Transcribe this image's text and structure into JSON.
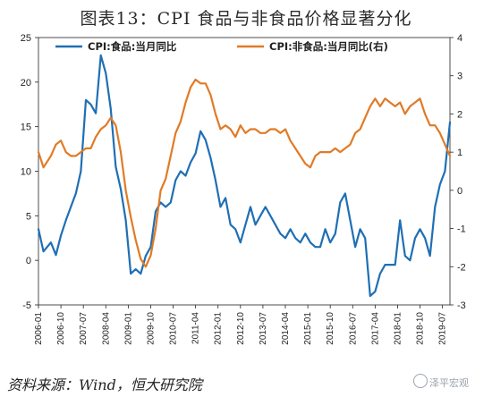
{
  "title": "图表13：CPI 食品与非食品价格显著分化",
  "source": "资料来源：Wind，恒大研究院",
  "watermark": "泽平宏观",
  "watermark_icon": "wechat-icon",
  "chart_data": {
    "type": "line",
    "grid": false,
    "legend_position": "top",
    "x_tick_labels": [
      "2006-01",
      "2006-10",
      "2007-07",
      "2008-04",
      "2009-01",
      "2009-10",
      "2010-07",
      "2011-04",
      "2012-01",
      "2012-10",
      "2013-07",
      "2014-04",
      "2015-01",
      "2015-10",
      "2016-07",
      "2017-04",
      "2018-01",
      "2018-10",
      "2019-07"
    ],
    "x_range": [
      "2006-01",
      "2019-10"
    ],
    "y_left": {
      "range": [
        -5,
        25
      ],
      "ticks": [
        -5,
        0,
        5,
        10,
        15,
        20,
        25
      ]
    },
    "y_right": {
      "range": [
        -3,
        4
      ],
      "ticks": [
        -3,
        -2,
        -1,
        0,
        1,
        2,
        3,
        4
      ]
    },
    "series": [
      {
        "name": "CPI:食品:当月同比",
        "axis": "left",
        "color": "#1f6fb4",
        "points": [
          [
            "2006-01",
            3.5
          ],
          [
            "2006-03",
            1.0
          ],
          [
            "2006-06",
            2.0
          ],
          [
            "2006-08",
            0.6
          ],
          [
            "2006-10",
            2.8
          ],
          [
            "2006-12",
            4.5
          ],
          [
            "2007-02",
            6.0
          ],
          [
            "2007-04",
            7.5
          ],
          [
            "2007-06",
            10.0
          ],
          [
            "2007-08",
            18.0
          ],
          [
            "2007-10",
            17.5
          ],
          [
            "2007-12",
            16.5
          ],
          [
            "2008-02",
            23.0
          ],
          [
            "2008-04",
            21.0
          ],
          [
            "2008-06",
            17.0
          ],
          [
            "2008-08",
            10.5
          ],
          [
            "2008-10",
            8.0
          ],
          [
            "2008-12",
            4.5
          ],
          [
            "2009-02",
            -1.5
          ],
          [
            "2009-04",
            -1.0
          ],
          [
            "2009-06",
            -1.5
          ],
          [
            "2009-08",
            0.5
          ],
          [
            "2009-10",
            1.5
          ],
          [
            "2009-12",
            5.5
          ],
          [
            "2010-02",
            6.5
          ],
          [
            "2010-04",
            6.0
          ],
          [
            "2010-06",
            6.5
          ],
          [
            "2010-08",
            9.0
          ],
          [
            "2010-10",
            10.0
          ],
          [
            "2010-12",
            9.5
          ],
          [
            "2011-02",
            11.0
          ],
          [
            "2011-04",
            12.0
          ],
          [
            "2011-06",
            14.5
          ],
          [
            "2011-08",
            13.5
          ],
          [
            "2011-10",
            11.5
          ],
          [
            "2011-12",
            9.0
          ],
          [
            "2012-02",
            6.0
          ],
          [
            "2012-04",
            7.0
          ],
          [
            "2012-06",
            4.0
          ],
          [
            "2012-08",
            3.5
          ],
          [
            "2012-10",
            2.0
          ],
          [
            "2012-12",
            4.0
          ],
          [
            "2013-02",
            6.0
          ],
          [
            "2013-04",
            4.0
          ],
          [
            "2013-06",
            5.0
          ],
          [
            "2013-08",
            6.0
          ],
          [
            "2013-10",
            5.0
          ],
          [
            "2013-12",
            4.0
          ],
          [
            "2014-02",
            3.0
          ],
          [
            "2014-04",
            2.5
          ],
          [
            "2014-06",
            3.5
          ],
          [
            "2014-08",
            2.5
          ],
          [
            "2014-10",
            2.0
          ],
          [
            "2014-12",
            3.0
          ],
          [
            "2015-02",
            2.0
          ],
          [
            "2015-04",
            1.5
          ],
          [
            "2015-06",
            1.5
          ],
          [
            "2015-08",
            3.5
          ],
          [
            "2015-10",
            2.0
          ],
          [
            "2015-12",
            3.0
          ],
          [
            "2016-02",
            6.5
          ],
          [
            "2016-04",
            7.5
          ],
          [
            "2016-06",
            4.5
          ],
          [
            "2016-08",
            1.5
          ],
          [
            "2016-10",
            3.5
          ],
          [
            "2016-12",
            2.5
          ],
          [
            "2017-02",
            -4.0
          ],
          [
            "2017-04",
            -3.5
          ],
          [
            "2017-06",
            -1.5
          ],
          [
            "2017-08",
            -0.5
          ],
          [
            "2017-10",
            -0.5
          ],
          [
            "2017-12",
            -0.5
          ],
          [
            "2018-02",
            4.5
          ],
          [
            "2018-04",
            0.5
          ],
          [
            "2018-06",
            0.0
          ],
          [
            "2018-08",
            2.5
          ],
          [
            "2018-10",
            3.5
          ],
          [
            "2018-12",
            2.5
          ],
          [
            "2019-02",
            0.5
          ],
          [
            "2019-04",
            6.0
          ],
          [
            "2019-06",
            8.5
          ],
          [
            "2019-08",
            10.0
          ],
          [
            "2019-10",
            15.5
          ]
        ]
      },
      {
        "name": "CPI:非食品:当月同比(右)",
        "axis": "right",
        "color": "#e07b26",
        "points": [
          [
            "2006-01",
            1.0
          ],
          [
            "2006-03",
            0.6
          ],
          [
            "2006-06",
            0.9
          ],
          [
            "2006-08",
            1.2
          ],
          [
            "2006-10",
            1.3
          ],
          [
            "2006-12",
            1.0
          ],
          [
            "2007-02",
            0.9
          ],
          [
            "2007-04",
            0.9
          ],
          [
            "2007-06",
            1.0
          ],
          [
            "2007-08",
            1.1
          ],
          [
            "2007-10",
            1.1
          ],
          [
            "2007-12",
            1.4
          ],
          [
            "2008-02",
            1.6
          ],
          [
            "2008-04",
            1.7
          ],
          [
            "2008-06",
            1.9
          ],
          [
            "2008-08",
            1.7
          ],
          [
            "2008-10",
            1.0
          ],
          [
            "2008-12",
            0.0
          ],
          [
            "2009-02",
            -0.7
          ],
          [
            "2009-04",
            -1.3
          ],
          [
            "2009-06",
            -1.8
          ],
          [
            "2009-08",
            -2.0
          ],
          [
            "2009-10",
            -1.7
          ],
          [
            "2009-12",
            -1.0
          ],
          [
            "2010-02",
            0.0
          ],
          [
            "2010-04",
            0.3
          ],
          [
            "2010-06",
            0.9
          ],
          [
            "2010-08",
            1.5
          ],
          [
            "2010-10",
            1.8
          ],
          [
            "2010-12",
            2.3
          ],
          [
            "2011-02",
            2.7
          ],
          [
            "2011-04",
            2.9
          ],
          [
            "2011-06",
            2.8
          ],
          [
            "2011-08",
            2.8
          ],
          [
            "2011-10",
            2.5
          ],
          [
            "2011-12",
            2.0
          ],
          [
            "2012-02",
            1.6
          ],
          [
            "2012-04",
            1.7
          ],
          [
            "2012-06",
            1.6
          ],
          [
            "2012-08",
            1.4
          ],
          [
            "2012-10",
            1.7
          ],
          [
            "2012-12",
            1.5
          ],
          [
            "2013-02",
            1.6
          ],
          [
            "2013-04",
            1.6
          ],
          [
            "2013-06",
            1.5
          ],
          [
            "2013-08",
            1.5
          ],
          [
            "2013-10",
            1.6
          ],
          [
            "2013-12",
            1.6
          ],
          [
            "2014-02",
            1.5
          ],
          [
            "2014-04",
            1.6
          ],
          [
            "2014-06",
            1.3
          ],
          [
            "2014-08",
            1.1
          ],
          [
            "2014-10",
            0.9
          ],
          [
            "2014-12",
            0.7
          ],
          [
            "2015-02",
            0.6
          ],
          [
            "2015-04",
            0.9
          ],
          [
            "2015-06",
            1.0
          ],
          [
            "2015-08",
            1.0
          ],
          [
            "2015-10",
            1.0
          ],
          [
            "2015-12",
            1.1
          ],
          [
            "2016-02",
            1.0
          ],
          [
            "2016-04",
            1.1
          ],
          [
            "2016-06",
            1.2
          ],
          [
            "2016-08",
            1.5
          ],
          [
            "2016-10",
            1.6
          ],
          [
            "2016-12",
            1.9
          ],
          [
            "2017-02",
            2.2
          ],
          [
            "2017-04",
            2.4
          ],
          [
            "2017-06",
            2.2
          ],
          [
            "2017-08",
            2.4
          ],
          [
            "2017-10",
            2.3
          ],
          [
            "2017-12",
            2.2
          ],
          [
            "2018-02",
            2.3
          ],
          [
            "2018-04",
            2.0
          ],
          [
            "2018-06",
            2.2
          ],
          [
            "2018-08",
            2.3
          ],
          [
            "2018-10",
            2.4
          ],
          [
            "2018-12",
            2.0
          ],
          [
            "2019-02",
            1.7
          ],
          [
            "2019-04",
            1.7
          ],
          [
            "2019-06",
            1.5
          ],
          [
            "2019-08",
            1.2
          ],
          [
            "2019-10",
            0.9
          ]
        ]
      }
    ]
  }
}
